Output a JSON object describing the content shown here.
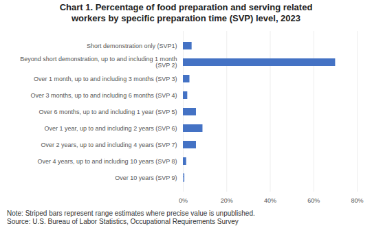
{
  "chart_data": {
    "type": "bar",
    "orientation": "horizontal",
    "title": "Chart 1. Percentage of food preparation and serving related\nworkers by specific preparation time (SVP) level, 2023",
    "categories": [
      "Short demonstration only (SVP1)",
      "Beyond short demonstration, up to and including 1 month\n(SVP 2)",
      "Over 1 month, up to and including 3 months (SVP 3)",
      "Over 3 months, up to and including 6 months (SVP 4)",
      "Over 6 months, up to and including 1 year (SVP 5)",
      "Over 1 year, up to and including 2 years (SVP 6)",
      "Over 2 years, up to and including 4 years (SVP 7)",
      "Over 4 years, up to and including 10 years (SVP 8)",
      "Over 10 years (SVP 9)"
    ],
    "values": [
      4.0,
      70.0,
      3.0,
      2.0,
      6.0,
      9.0,
      6.0,
      1.5,
      0.5
    ],
    "striped": [
      false,
      false,
      false,
      false,
      false,
      false,
      false,
      false,
      true
    ],
    "color": "#4472C4",
    "xlim": [
      0,
      80
    ],
    "xticks": [
      {
        "value": 0,
        "label": "0%"
      },
      {
        "value": 20,
        "label": "20%"
      },
      {
        "value": 40,
        "label": "40%"
      },
      {
        "value": 60,
        "label": "60%"
      },
      {
        "value": 80,
        "label": "80%"
      }
    ],
    "grid": true,
    "note": "Note: Striped bars represent range estimates where precise value is unpublished.\nSource: U.S. Bureau of Labor Statistics, Occupational Requirements Survey"
  }
}
